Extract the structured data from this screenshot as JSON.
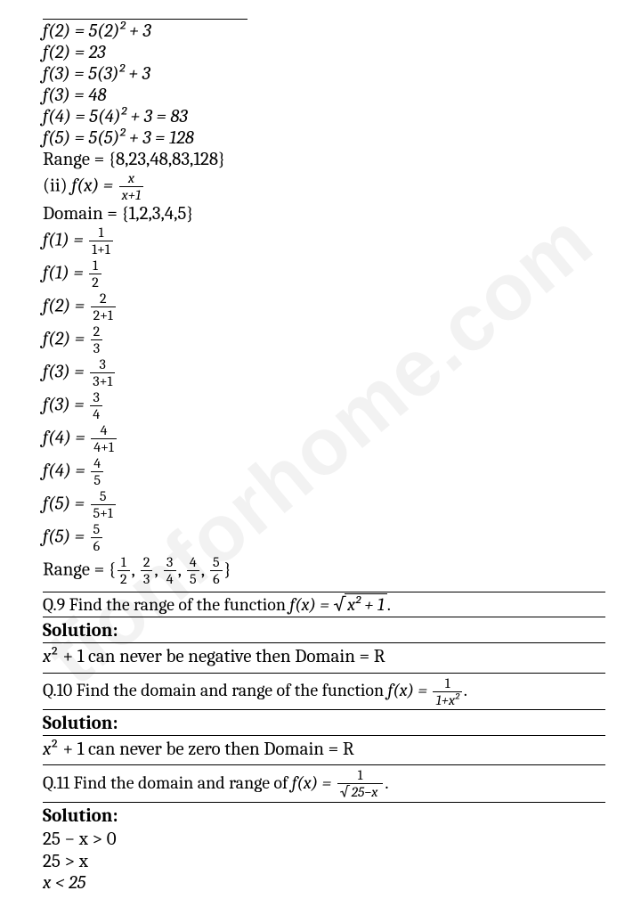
{
  "watermark": "tionforhome.com",
  "top": {
    "l1": "f(2) = 5(2)² + 3",
    "l2": "f(2) = 23",
    "l3": "f(3) = 5(3)² + 3",
    "l4": "f(3) = 48",
    "l5": "f(4) = 5(4)² + 3 = 83",
    "l6": "f(5) = 5(5)² + 3 = 128",
    "l7": "Range = {8,23,48,83,128}",
    "l8a": "(ii) ",
    "l8b": "f(x) = ",
    "l8_num": "x",
    "l8_den": "x+1",
    "l9": "Domain = {1,2,3,4,5}"
  },
  "fcalc": [
    {
      "lhs": "f(1) = ",
      "num": "1",
      "den": "1+1"
    },
    {
      "lhs": "f(1) = ",
      "num": "1",
      "den": "2"
    },
    {
      "lhs": "f(2) = ",
      "num": "2",
      "den": "2+1"
    },
    {
      "lhs": "f(2) = ",
      "num": "2",
      "den": "3"
    },
    {
      "lhs": "f(3) = ",
      "num": "3",
      "den": "3+1"
    },
    {
      "lhs": "f(3) = ",
      "num": "3",
      "den": "4"
    },
    {
      "lhs": "f(4) = ",
      "num": "4",
      "den": "4+1"
    },
    {
      "lhs": "f(4) = ",
      "num": "4",
      "den": "5"
    },
    {
      "lhs": "f(5) = ",
      "num": "5",
      "den": "5+1"
    },
    {
      "lhs": "f(5) = ",
      "num": "5",
      "den": "6"
    }
  ],
  "rangeSet": {
    "pre": "Range = {",
    "items": [
      {
        "n": "1",
        "d": "2"
      },
      {
        "n": "2",
        "d": "3"
      },
      {
        "n": "3",
        "d": "4"
      },
      {
        "n": "4",
        "d": "5"
      },
      {
        "n": "5",
        "d": "6"
      }
    ],
    "post": "}"
  },
  "q9": {
    "text": "Q.9 Find the range of the function ",
    "fx": "f(x) = ",
    "rad": "x² + 1",
    "dot": "."
  },
  "sol": "Solution:",
  "q9sol": "x² + 1 can never be negative then Domain = R",
  "q10": {
    "text": "Q.10 Find the domain and range of the function ",
    "fx": "f(x) = ",
    "num": "1",
    "den": "1+x²",
    "dot": "."
  },
  "q10sol": "x² + 1 can never be zero then Domain = R",
  "q11": {
    "text": "Q.11 Find the domain and range of ",
    "fx": "f(x) = ",
    "num": "1",
    "rad": "25−x",
    "dot": "."
  },
  "q11sol": {
    "a": "25 − x > 0",
    "b": "25 > x",
    "c": "x < 25"
  }
}
